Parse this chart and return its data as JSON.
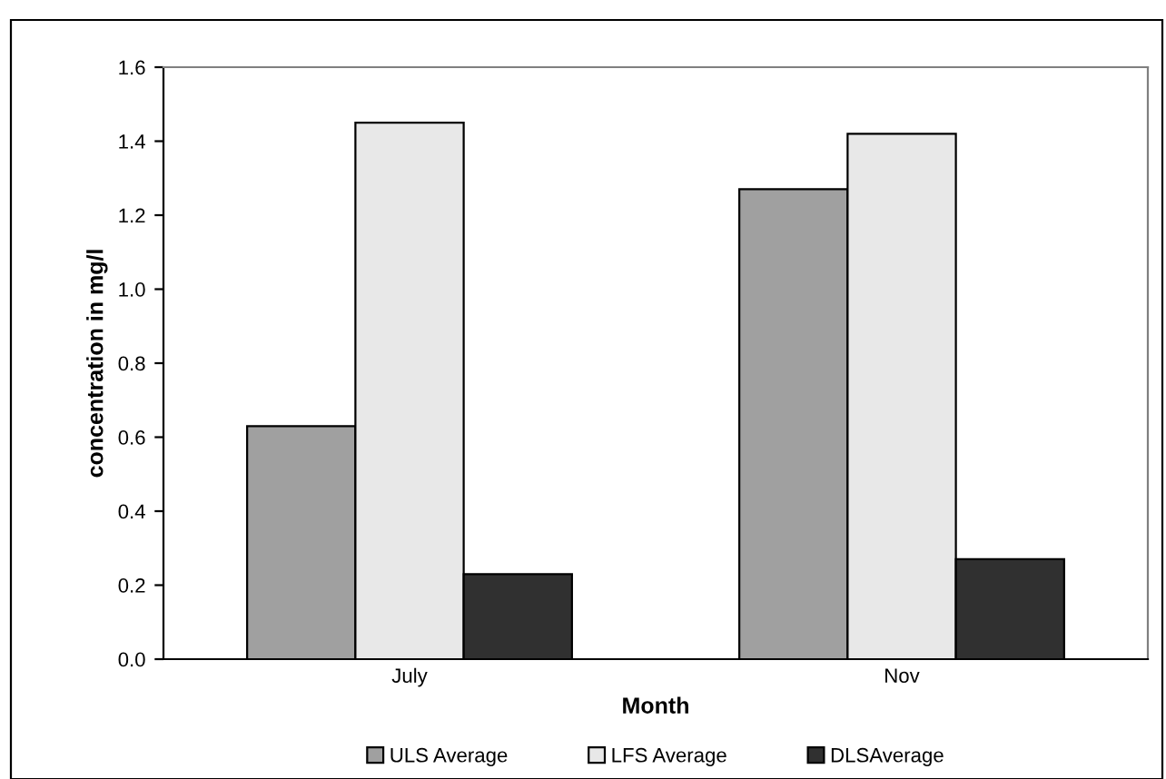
{
  "chart_data": {
    "type": "bar",
    "xlabel": "Month",
    "ylabel": "concentration in mg/l",
    "categories": [
      "July",
      "Nov"
    ],
    "series": [
      {
        "name": "ULS Average",
        "color": "#a0a0a0",
        "values": [
          0.63,
          1.27
        ]
      },
      {
        "name": "LFS Average",
        "color": "#e8e8e8",
        "values": [
          1.45,
          1.42
        ]
      },
      {
        "name": "DLSAverage",
        "color": "#303030",
        "values": [
          0.23,
          0.27
        ]
      }
    ],
    "ylim": [
      0,
      1.6
    ],
    "yticks": [
      {
        "value": 0,
        "label": "0.0"
      },
      0.2,
      0.4,
      0.6,
      0.8,
      {
        "value": 1,
        "label": "1.0"
      },
      1.2,
      1.4,
      1.6
    ],
    "grid": false,
    "legend": "bottom"
  }
}
